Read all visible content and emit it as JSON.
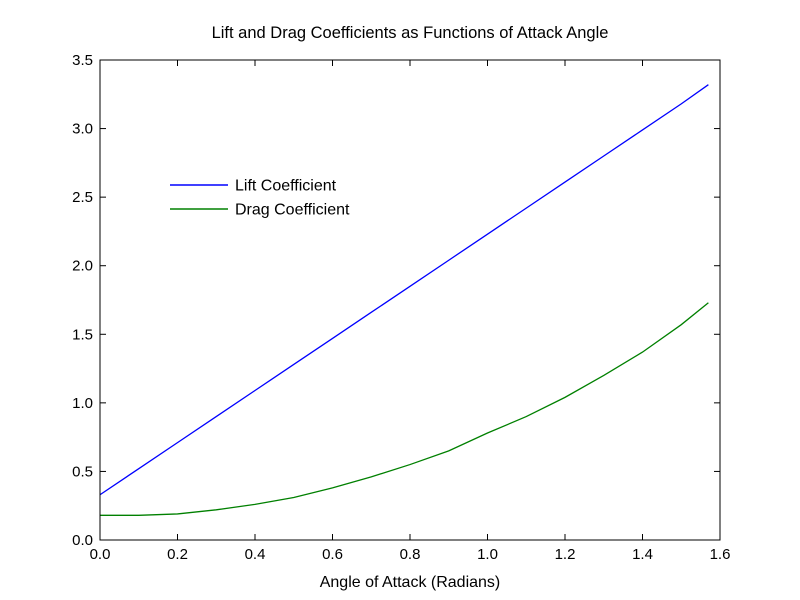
{
  "chart_data": {
    "type": "line",
    "title": "Lift and Drag Coefficients as Functions of Attack Angle",
    "xlabel": "Angle of Attack (Radians)",
    "ylabel": "",
    "xlim": [
      0,
      1.6
    ],
    "ylim": [
      0,
      3.5
    ],
    "xticks": [
      0.0,
      0.2,
      0.4,
      0.6,
      0.8,
      1.0,
      1.2,
      1.4,
      1.6
    ],
    "xtick_labels": [
      "0.0",
      "0.2",
      "0.4",
      "0.6",
      "0.8",
      "1.0",
      "1.2",
      "1.4",
      "1.6"
    ],
    "yticks": [
      0.0,
      0.5,
      1.0,
      1.5,
      2.0,
      2.5,
      3.0,
      3.5
    ],
    "ytick_labels": [
      "0.0",
      "0.5",
      "1.0",
      "1.5",
      "2.0",
      "2.5",
      "3.0",
      "3.5"
    ],
    "grid": false,
    "legend_position": "upper-left",
    "x": [
      0.0,
      0.1,
      0.2,
      0.3,
      0.4,
      0.5,
      0.6,
      0.7,
      0.8,
      0.9,
      1.0,
      1.1,
      1.2,
      1.3,
      1.4,
      1.5,
      1.57
    ],
    "series": [
      {
        "name": "Lift Coefficient",
        "color": "#0000ff",
        "values": [
          0.33,
          0.52,
          0.71,
          0.9,
          1.09,
          1.28,
          1.47,
          1.66,
          1.85,
          2.04,
          2.23,
          2.42,
          2.61,
          2.8,
          2.99,
          3.18,
          3.32
        ]
      },
      {
        "name": "Drag Coefficient",
        "color": "#008000",
        "values": [
          0.18,
          0.18,
          0.19,
          0.22,
          0.26,
          0.31,
          0.38,
          0.46,
          0.55,
          0.65,
          0.78,
          0.9,
          1.04,
          1.2,
          1.37,
          1.57,
          1.73
        ]
      }
    ]
  }
}
